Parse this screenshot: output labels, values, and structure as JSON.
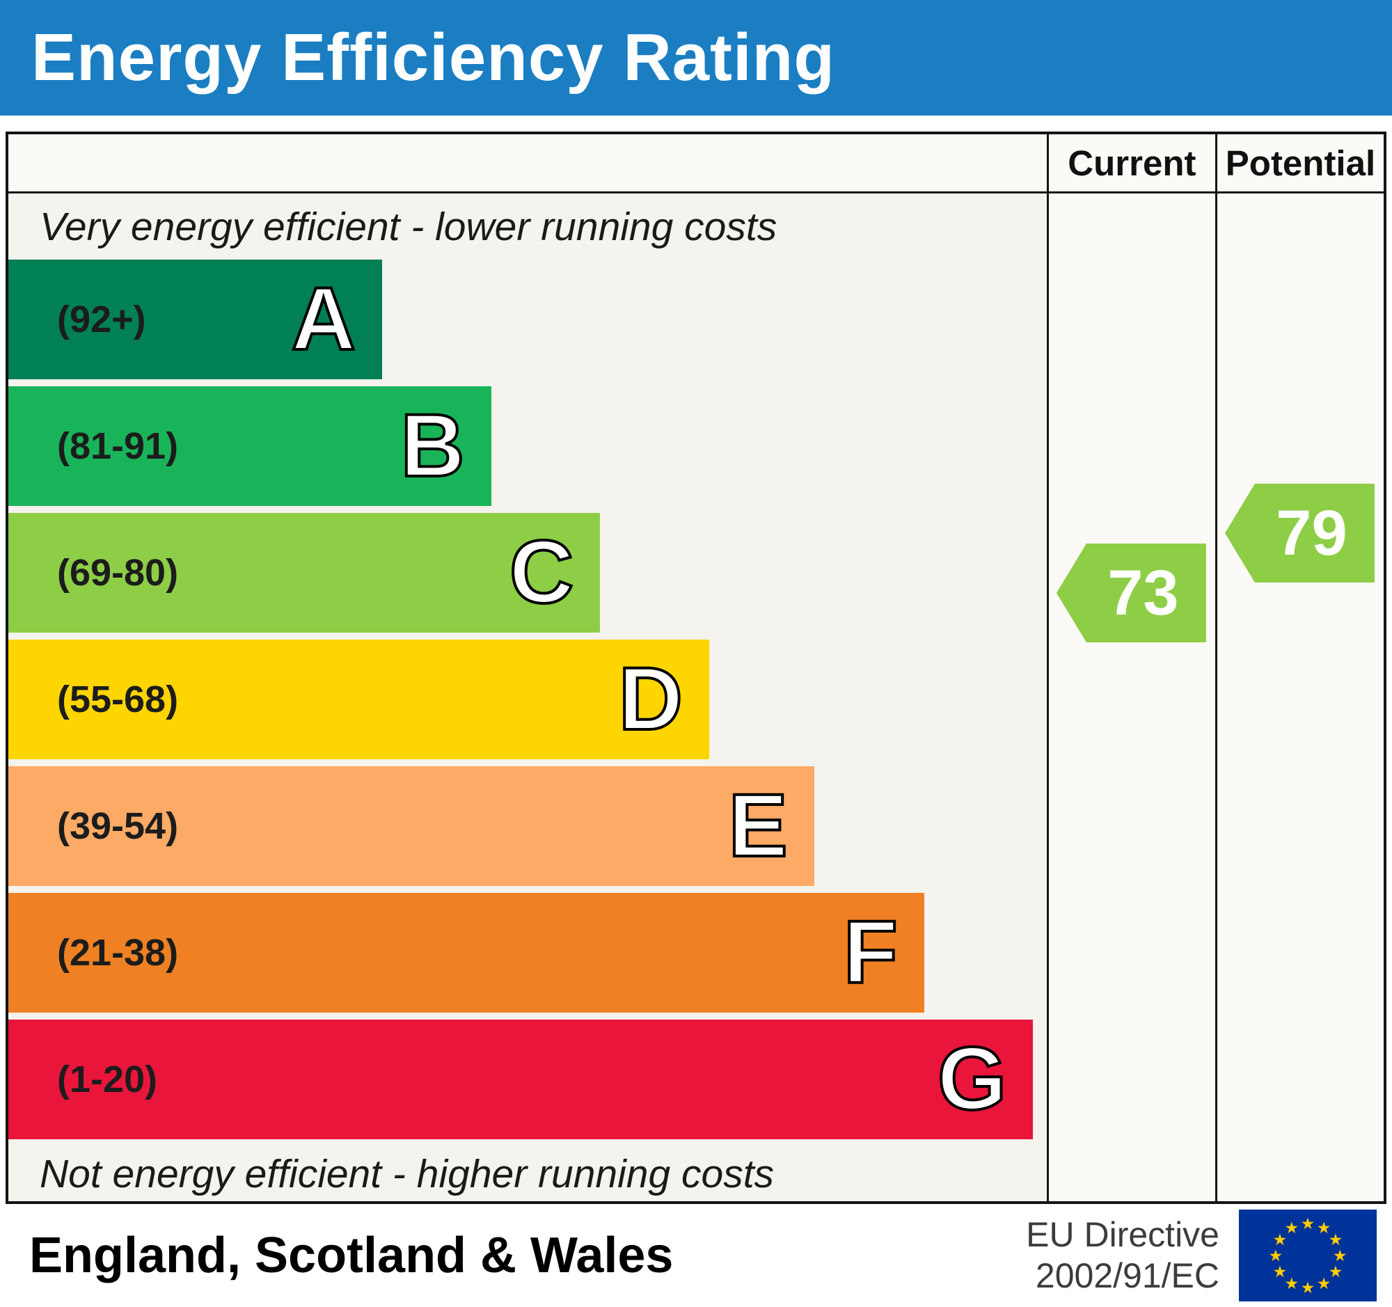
{
  "title": "Energy Efficiency Rating",
  "header_bg": "#1b7ec2",
  "columns": {
    "current": "Current",
    "potential": "Potential"
  },
  "captions": {
    "top": "Very energy efficient - lower running costs",
    "bottom": "Not energy efficient - higher running costs"
  },
  "footer": {
    "region": "England, Scotland & Wales",
    "directive_line1": "EU Directive",
    "directive_line2": "2002/91/EC",
    "flag": {
      "bg": "#003399",
      "star": "#ffcc00"
    }
  },
  "chart_data": {
    "type": "bar",
    "title": "Energy Efficiency Rating",
    "xlabel": "",
    "ylabel": "",
    "scale": [
      1,
      100
    ],
    "bands": [
      {
        "letter": "A",
        "range_label": "(92+)",
        "min": 92,
        "max": 100,
        "color": "#008054"
      },
      {
        "letter": "B",
        "range_label": "(81-91)",
        "min": 81,
        "max": 91,
        "color": "#19b459"
      },
      {
        "letter": "C",
        "range_label": "(69-80)",
        "min": 69,
        "max": 80,
        "color": "#8dce46"
      },
      {
        "letter": "D",
        "range_label": "(55-68)",
        "min": 55,
        "max": 68,
        "color": "#ffd500"
      },
      {
        "letter": "E",
        "range_label": "(39-54)",
        "min": 39,
        "max": 54,
        "color": "#fcaa65"
      },
      {
        "letter": "F",
        "range_label": "(21-38)",
        "min": 21,
        "max": 38,
        "color": "#ef8023"
      },
      {
        "letter": "G",
        "range_label": "(1-20)",
        "min": 1,
        "max": 20,
        "color": "#e9153b"
      }
    ],
    "current": {
      "value": 73,
      "band": "C",
      "color": "#8dce46"
    },
    "potential": {
      "value": 79,
      "band": "C",
      "color": "#8dce46"
    }
  }
}
